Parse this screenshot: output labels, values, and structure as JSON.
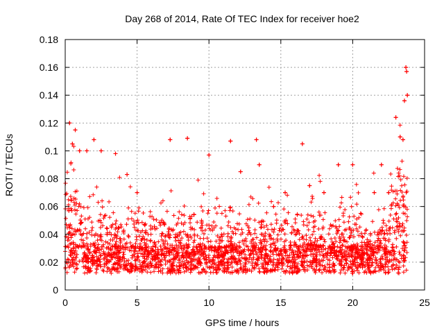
{
  "chart_data": {
    "type": "scatter",
    "title": "Day 268 of 2014, Rate Of TEC Index for receiver hoe2",
    "xlabel": "GPS time / hours",
    "ylabel": "ROTI / TECUs",
    "xlim": [
      0,
      25
    ],
    "ylim": [
      0,
      0.18
    ],
    "xticks": [
      0,
      5,
      10,
      15,
      20,
      25
    ],
    "xtick_labels": [
      "0",
      "5",
      "10",
      "15",
      "20",
      "25"
    ],
    "yticks": [
      0,
      0.02,
      0.04,
      0.06,
      0.08,
      0.1,
      0.12,
      0.14,
      0.16,
      0.18
    ],
    "ytick_labels": [
      "0",
      "0.02",
      "0.04",
      "0.06",
      "0.08",
      "0.1",
      "0.12",
      "0.14",
      "0.16",
      "0.18"
    ],
    "grid": true,
    "marker": "+",
    "series_color": "#ff0000",
    "x_data_range": [
      0,
      23.8
    ],
    "series": [
      {
        "name": "ROTI",
        "points": [
          [
            0.3,
            0.12
          ],
          [
            0.5,
            0.105
          ],
          [
            0.7,
            0.115
          ],
          [
            1.0,
            0.1
          ],
          [
            1.5,
            0.1
          ],
          [
            2.0,
            0.108
          ],
          [
            2.5,
            0.1
          ],
          [
            3.5,
            0.098
          ],
          [
            4.3,
            0.083
          ],
          [
            5.0,
            0.07
          ],
          [
            7.3,
            0.108
          ],
          [
            8.5,
            0.109
          ],
          [
            10.0,
            0.097
          ],
          [
            11.5,
            0.107
          ],
          [
            12.2,
            0.085
          ],
          [
            13.3,
            0.108
          ],
          [
            13.5,
            0.09
          ],
          [
            14.5,
            0.06
          ],
          [
            15.3,
            0.07
          ],
          [
            16.5,
            0.105
          ],
          [
            17.0,
            0.075
          ],
          [
            18.0,
            0.07
          ],
          [
            19.0,
            0.09
          ],
          [
            20.0,
            0.09
          ],
          [
            21.5,
            0.07
          ],
          [
            22.0,
            0.09
          ],
          [
            22.5,
            0.07
          ],
          [
            23.0,
            0.124
          ],
          [
            23.3,
            0.11
          ],
          [
            23.5,
            0.108
          ],
          [
            23.6,
            0.136
          ],
          [
            23.7,
            0.16
          ],
          [
            23.75,
            0.157
          ],
          [
            23.8,
            0.14
          ]
        ]
      }
    ]
  }
}
